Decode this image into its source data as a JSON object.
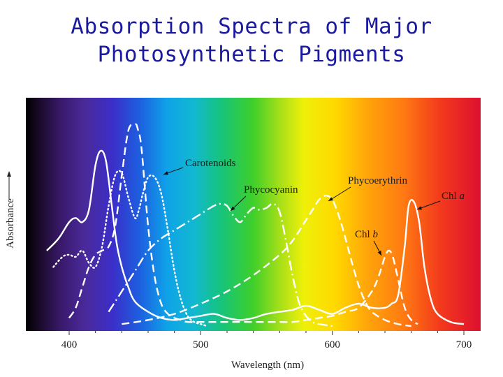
{
  "title_lines": [
    "Absorption Spectra of Major",
    "Photosynthetic Pigments"
  ],
  "chart_data": {
    "type": "line",
    "title": "Absorption Spectra of Major Photosynthetic Pigments",
    "xlabel": "Wavelength (nm)",
    "ylabel": "Absorbance",
    "xlim": [
      370,
      710
    ],
    "ylim": [
      0,
      1
    ],
    "x_ticks": [
      400,
      500,
      600,
      700
    ],
    "background": "visible-spectrum gradient",
    "series": [
      {
        "name": "Chl a",
        "style": "solid",
        "x": [
          383,
          392,
          400,
          405,
          410,
          415,
          420,
          424,
          428,
          432,
          436,
          440,
          445,
          450,
          460,
          470,
          480,
          490,
          500,
          510,
          520,
          530,
          540,
          550,
          560,
          570,
          580,
          590,
          600,
          610,
          620,
          630,
          640,
          645,
          650,
          655,
          658,
          662,
          666,
          670,
          675,
          680,
          690,
          700
        ],
        "y": [
          0.38,
          0.44,
          0.52,
          0.54,
          0.52,
          0.58,
          0.8,
          0.87,
          0.82,
          0.62,
          0.42,
          0.3,
          0.2,
          0.13,
          0.08,
          0.05,
          0.04,
          0.05,
          0.06,
          0.07,
          0.05,
          0.04,
          0.05,
          0.07,
          0.08,
          0.09,
          0.11,
          0.09,
          0.07,
          0.1,
          0.12,
          0.1,
          0.1,
          0.12,
          0.16,
          0.4,
          0.6,
          0.62,
          0.52,
          0.3,
          0.14,
          0.07,
          0.03,
          0.02
        ]
      },
      {
        "name": "Chl b",
        "style": "dashed",
        "x": [
          400,
          405,
          410,
          415,
          420,
          425,
          430,
          435,
          440,
          445,
          450,
          452,
          455,
          460,
          465,
          470,
          475,
          480,
          485,
          490,
          500,
          510,
          520,
          530,
          540,
          550,
          560,
          570,
          580,
          590,
          600,
          610,
          620,
          630,
          635,
          640,
          643,
          646,
          650,
          655,
          660,
          665
        ],
        "y": [
          0.05,
          0.1,
          0.2,
          0.3,
          0.36,
          0.38,
          0.4,
          0.5,
          0.75,
          0.97,
          1.0,
          0.98,
          0.88,
          0.5,
          0.25,
          0.12,
          0.07,
          0.05,
          0.04,
          0.03,
          0.03,
          0.03,
          0.03,
          0.03,
          0.03,
          0.03,
          0.03,
          0.03,
          0.04,
          0.05,
          0.06,
          0.08,
          0.1,
          0.18,
          0.25,
          0.35,
          0.38,
          0.35,
          0.24,
          0.1,
          0.04,
          0.02
        ]
      },
      {
        "name": "Carotenoids",
        "style": "dotted",
        "x": [
          388,
          395,
          400,
          405,
          410,
          415,
          420,
          425,
          430,
          435,
          440,
          445,
          450,
          453,
          456,
          460,
          465,
          470,
          475,
          480,
          485,
          490,
          495,
          500,
          505
        ],
        "y": [
          0.3,
          0.35,
          0.36,
          0.35,
          0.38,
          0.32,
          0.3,
          0.4,
          0.6,
          0.75,
          0.76,
          0.64,
          0.54,
          0.58,
          0.66,
          0.74,
          0.74,
          0.66,
          0.48,
          0.28,
          0.14,
          0.06,
          0.03,
          0.02,
          0.01
        ]
      },
      {
        "name": "Phycocyanin",
        "style": "dash-dot",
        "x": [
          430,
          440,
          450,
          460,
          470,
          480,
          490,
          500,
          510,
          515,
          520,
          525,
          530,
          535,
          540,
          545,
          550,
          555,
          560,
          565,
          570,
          575,
          580,
          585,
          590,
          600
        ],
        "y": [
          0.08,
          0.18,
          0.28,
          0.38,
          0.44,
          0.48,
          0.52,
          0.56,
          0.6,
          0.61,
          0.6,
          0.55,
          0.52,
          0.56,
          0.59,
          0.58,
          0.59,
          0.61,
          0.57,
          0.42,
          0.25,
          0.12,
          0.06,
          0.03,
          0.02,
          0.01
        ]
      },
      {
        "name": "Phycoerythrin",
        "style": "dashed",
        "x": [
          440,
          460,
          480,
          500,
          520,
          540,
          560,
          570,
          580,
          585,
          590,
          595,
          600,
          605,
          610,
          615,
          620,
          625,
          630,
          640,
          650,
          660
        ],
        "y": [
          0.02,
          0.04,
          0.07,
          0.12,
          0.18,
          0.26,
          0.36,
          0.43,
          0.53,
          0.58,
          0.63,
          0.65,
          0.63,
          0.55,
          0.44,
          0.32,
          0.21,
          0.13,
          0.08,
          0.04,
          0.02,
          0.01
        ]
      }
    ],
    "annotations": [
      {
        "text": "Carotenoids",
        "target": "Carotenoids"
      },
      {
        "text": "Phycocyanin",
        "target": "Phycocyanin"
      },
      {
        "text": "Phycoerythrin",
        "target": "Phycoerythrin"
      },
      {
        "text": "Chl a",
        "target": "Chl a"
      },
      {
        "text": "Chl b",
        "target": "Chl b"
      }
    ]
  }
}
